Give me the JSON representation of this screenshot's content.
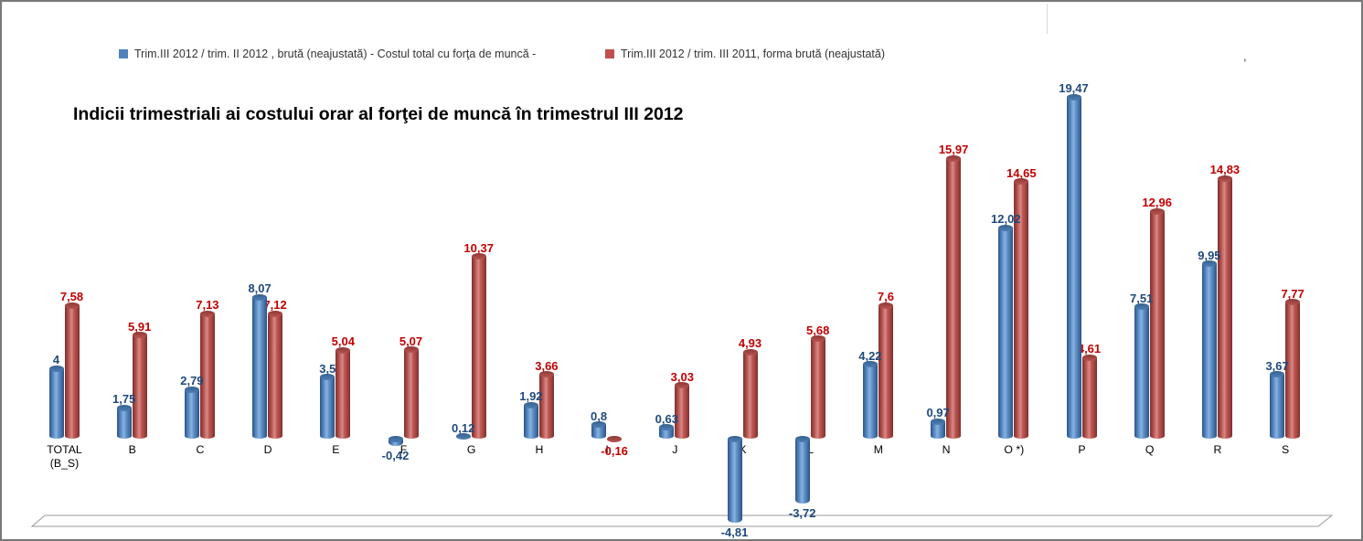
{
  "chart_data": {
    "type": "bar",
    "style": "3d-cylinder",
    "title": "Indicii trimestriali ai costului orar al forţei de muncă în trimestrul III 2012",
    "categories": [
      "TOTAL\n(B_S)",
      "B",
      "C",
      "D",
      "E",
      "F",
      "G",
      "H",
      "I",
      "J",
      "K",
      "L",
      "M",
      "N",
      "O *)",
      "P",
      "Q",
      "R",
      "S"
    ],
    "series": [
      {
        "name": "Trim.III 2012 / trim. II 2012 , brută (neajustată) - Costul total cu forţa de muncă -",
        "color": "#4F81BD",
        "label_color": "#1F497D",
        "values": [
          4,
          1.75,
          2.79,
          8.07,
          3.5,
          -0.42,
          0.12,
          1.92,
          0.8,
          0.63,
          -4.81,
          -3.72,
          4.22,
          0.97,
          12.02,
          19.47,
          7.51,
          9.95,
          3.67
        ],
        "labels": [
          "4",
          "1,75",
          "2,79",
          "8,07",
          "3,5",
          "-0,42",
          "0,12",
          "1,92",
          "0,8",
          "0,63",
          "-4,81",
          "-3,72",
          "4,22",
          "0,97",
          "12,02",
          "19,47",
          "7,51",
          "9,95",
          "3,67"
        ]
      },
      {
        "name": "Trim.III 2012  / trim. III 2011, forma brută (neajustată)",
        "color": "#C0504D",
        "label_color": "#C00000",
        "values": [
          7.58,
          5.91,
          7.13,
          7.12,
          5.04,
          5.07,
          10.37,
          3.66,
          -0.16,
          3.03,
          4.93,
          5.68,
          7.6,
          15.97,
          14.65,
          4.61,
          12.96,
          14.83,
          7.77
        ],
        "labels": [
          "7,58",
          "5,91",
          "7,13",
          "7,12",
          "5,04",
          "5,07",
          "10,37",
          "3,66",
          "-0,16",
          "3,03",
          "4,93",
          "5,68",
          "7,6",
          "15,97",
          "14,65",
          "4,61",
          "12,96",
          "14,83",
          "7,77"
        ]
      }
    ],
    "ylim": [
      -6,
      21
    ],
    "grid": false,
    "axis_line": false,
    "legend_position": "top",
    "data_labels": "on",
    "decimal_separator": ","
  },
  "annotations": {
    "stray_mark": ","
  }
}
